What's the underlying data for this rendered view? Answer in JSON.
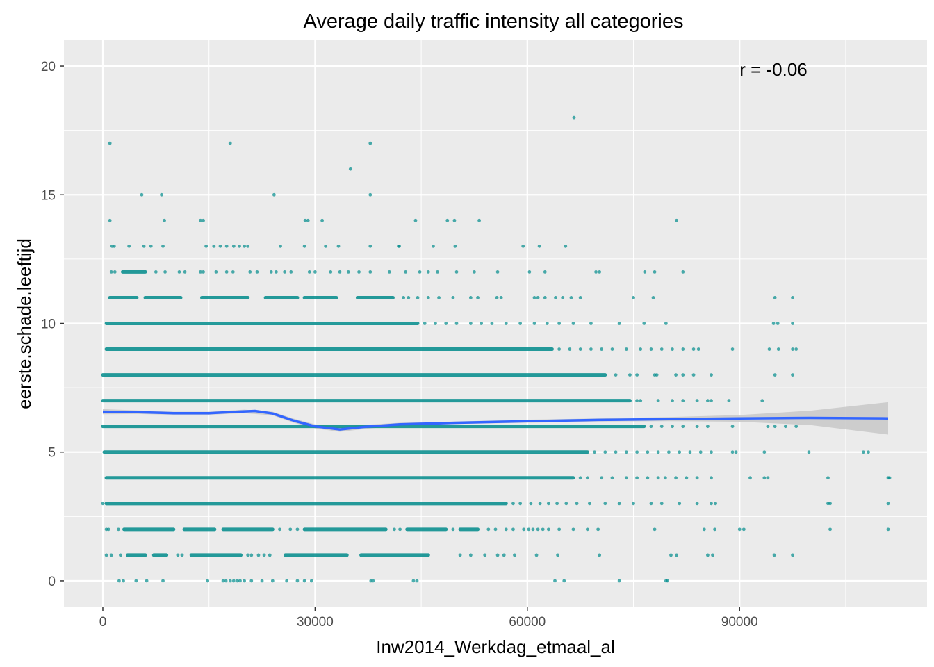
{
  "chart_data": {
    "type": "scatter",
    "title": "Average daily traffic intensity all categories",
    "xlabel": "Inw2014_Werkdag_etmaal_al",
    "ylabel": "eerste.schade.leeftijd",
    "xlim": [
      -5500,
      116500
    ],
    "ylim": [
      -1,
      21
    ],
    "x_ticks": [
      0,
      30000,
      60000,
      90000
    ],
    "y_ticks": [
      0,
      5,
      10,
      15,
      20
    ],
    "grid": true,
    "annotation": {
      "text": "r = -0.06",
      "x": 90000,
      "y": 19.9
    },
    "point_color": "#008B8B",
    "smooth_color": "#3366FF",
    "band_color": "#C8C8C8",
    "panel_background": "#EBEBEB",
    "bands": [
      {
        "y": 0,
        "segments": [],
        "points": [
          2300,
          2900,
          4700,
          6200,
          8500,
          14800,
          17000,
          17400,
          18000,
          18500,
          19000,
          19400,
          20000,
          21000,
          22500,
          24000,
          26000,
          27500,
          28500,
          29500,
          37900,
          38200,
          43900,
          44400,
          63900,
          65200,
          73000,
          79600,
          79800
        ]
      },
      {
        "y": 1,
        "segments": [
          [
            3500,
            6000
          ],
          [
            7200,
            9000
          ],
          [
            12500,
            19500
          ],
          [
            25800,
            34500
          ],
          [
            36500,
            46000
          ]
        ],
        "points": [
          500,
          1200,
          2500,
          10600,
          11200,
          20500,
          21000,
          22000,
          22800,
          23600,
          50500,
          52000,
          54000,
          55800,
          56700,
          58200,
          61300,
          64300,
          70200,
          80300,
          81100,
          85500,
          86200,
          94900,
          97500
        ]
      },
      {
        "y": 2,
        "segments": [
          [
            3000,
            10000
          ],
          [
            11500,
            15800
          ],
          [
            17000,
            24000
          ],
          [
            28500,
            40000
          ],
          [
            43000,
            48500
          ],
          [
            50500,
            53000
          ]
        ],
        "points": [
          500,
          800,
          2200,
          25000,
          26500,
          27500,
          41200,
          42000,
          49500,
          54500,
          55500,
          57000,
          58000,
          59500,
          60200,
          60800,
          61500,
          62200,
          63000,
          64500,
          66500,
          68500,
          70000,
          78000,
          85000,
          86500,
          90000,
          90600,
          102800,
          111000
        ]
      },
      {
        "y": 3,
        "segments": [
          [
            500,
            57000
          ]
        ],
        "points": [
          0,
          58000,
          59000,
          60500,
          61800,
          63000,
          64200,
          65500,
          67000,
          68800,
          71000,
          73000,
          75000,
          77500,
          79000,
          81500,
          84000,
          86000,
          86600,
          102500,
          102800,
          111000
        ]
      },
      {
        "y": 4,
        "segments": [
          [
            500,
            66500
          ]
        ],
        "points": [
          67500,
          68500,
          70500,
          72000,
          74000,
          75500,
          77000,
          78500,
          79500,
          81000,
          82500,
          84000,
          86000,
          91500,
          93500,
          94000,
          102500,
          111000,
          111200
        ]
      },
      {
        "y": 5,
        "segments": [
          [
            200,
            68500
          ]
        ],
        "points": [
          69500,
          71000,
          72500,
          74000,
          75500,
          77000,
          78500,
          80000,
          81500,
          83000,
          84500,
          86000,
          89000,
          89500,
          93500,
          99800,
          107500,
          108200
        ]
      },
      {
        "y": 6,
        "segments": [
          [
            0,
            76500
          ]
        ],
        "points": [
          77500,
          79000,
          80500,
          82000,
          84000,
          85500,
          89000,
          94000,
          95000,
          96500,
          98000
        ]
      },
      {
        "y": 7,
        "segments": [
          [
            0,
            74500
          ]
        ],
        "points": [
          75500,
          76000,
          78500,
          80500,
          82000,
          84000,
          85500,
          86000,
          88500,
          93200
        ]
      },
      {
        "y": 8,
        "segments": [
          [
            0,
            71000
          ]
        ],
        "points": [
          72500,
          74500,
          75500,
          78000,
          78300,
          81000,
          82000,
          83500,
          86000,
          95000,
          97500
        ]
      },
      {
        "y": 9,
        "segments": [
          [
            500,
            63500
          ]
        ],
        "points": [
          64500,
          66000,
          67500,
          69000,
          70500,
          72000,
          74000,
          76000,
          77500,
          79000,
          80500,
          82000,
          83500,
          84200,
          89000,
          94200,
          95500,
          97500,
          98000
        ]
      },
      {
        "y": 10,
        "segments": [
          [
            500,
            44500
          ]
        ],
        "points": [
          45500,
          47000,
          48500,
          50000,
          52000,
          53500,
          55000,
          57000,
          59000,
          61000,
          62800,
          64500,
          66500,
          69000,
          73000,
          76500,
          79600,
          94800,
          95400,
          97500
        ]
      },
      {
        "y": 11,
        "segments": [
          [
            1000,
            4800
          ],
          [
            6000,
            11000
          ],
          [
            14000,
            20500
          ],
          [
            23000,
            27500
          ],
          [
            28500,
            33000
          ],
          [
            36000,
            41000
          ]
        ],
        "points": [
          42500,
          43200,
          44500,
          46000,
          47500,
          49500,
          52000,
          53000,
          55700,
          56300,
          61000,
          61500,
          62500,
          64000,
          65000,
          66200,
          67500,
          75000,
          77800,
          95000,
          97500
        ]
      },
      {
        "y": 12,
        "segments": [
          [
            2800,
            6000
          ]
        ],
        "points": [
          1200,
          1700,
          7500,
          8800,
          10800,
          11600,
          13800,
          14200,
          16000,
          17500,
          18400,
          20800,
          21800,
          23800,
          24500,
          25700,
          26600,
          29200,
          30000,
          32200,
          33500,
          34700,
          36200,
          37800,
          40500,
          42800,
          44800,
          46000,
          47300,
          50000,
          52500,
          55800,
          60300,
          62500,
          69700,
          70200,
          76600,
          78000,
          82000
        ]
      },
      {
        "y": 13,
        "segments": [],
        "points": [
          1300,
          1600,
          3700,
          5800,
          6800,
          8500,
          14600,
          15700,
          16600,
          17500,
          18500,
          19300,
          20000,
          20500,
          25100,
          28500,
          31500,
          33300,
          37800,
          41800,
          41900,
          46700,
          49800,
          59400,
          61700,
          65400
        ]
      },
      {
        "y": 14,
        "segments": [],
        "points": [
          1000,
          8700,
          13800,
          14200,
          28600,
          29000,
          31000,
          44200,
          48700,
          49700,
          53200,
          81100
        ]
      },
      {
        "y": 15,
        "segments": [],
        "points": [
          5500,
          8300,
          24200,
          37800
        ]
      },
      {
        "y": 16,
        "segments": [],
        "points": [
          35000
        ]
      },
      {
        "y": 17,
        "segments": [],
        "points": [
          1000,
          18000,
          37800
        ]
      },
      {
        "y": 18,
        "segments": [],
        "points": [
          66600
        ]
      }
    ],
    "smooth_line": [
      [
        0,
        6.57
      ],
      [
        5000,
        6.55
      ],
      [
        10000,
        6.51
      ],
      [
        15000,
        6.51
      ],
      [
        19000,
        6.57
      ],
      [
        21500,
        6.6
      ],
      [
        24000,
        6.5
      ],
      [
        27000,
        6.22
      ],
      [
        30000,
        6.0
      ],
      [
        33500,
        5.88
      ],
      [
        37000,
        5.98
      ],
      [
        42000,
        6.08
      ],
      [
        50000,
        6.14
      ],
      [
        60000,
        6.2
      ],
      [
        70000,
        6.25
      ],
      [
        80000,
        6.28
      ],
      [
        90000,
        6.31
      ],
      [
        100000,
        6.33
      ],
      [
        111000,
        6.31
      ]
    ],
    "confidence_band": [
      [
        0,
        6.47,
        6.67
      ],
      [
        5000,
        6.48,
        6.62
      ],
      [
        10000,
        6.45,
        6.57
      ],
      [
        15000,
        6.45,
        6.57
      ],
      [
        20000,
        6.51,
        6.65
      ],
      [
        24000,
        6.43,
        6.57
      ],
      [
        27000,
        6.14,
        6.3
      ],
      [
        30000,
        5.92,
        6.08
      ],
      [
        33500,
        5.79,
        5.97
      ],
      [
        37000,
        5.9,
        6.06
      ],
      [
        42000,
        6.02,
        6.14
      ],
      [
        50000,
        6.09,
        6.19
      ],
      [
        60000,
        6.14,
        6.26
      ],
      [
        70000,
        6.19,
        6.31
      ],
      [
        80000,
        6.2,
        6.36
      ],
      [
        90000,
        6.18,
        6.44
      ],
      [
        100000,
        6.05,
        6.61
      ],
      [
        111000,
        5.68,
        6.94
      ]
    ]
  }
}
